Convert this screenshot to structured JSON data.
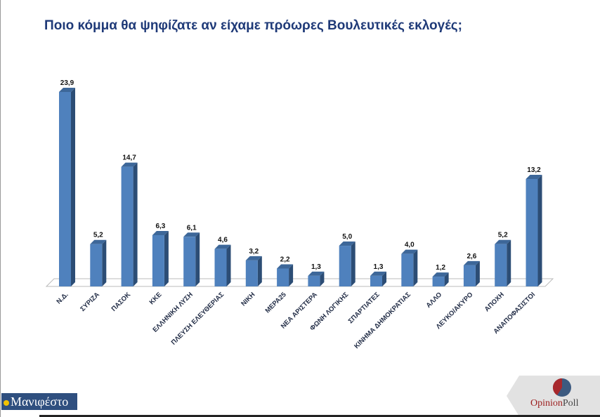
{
  "chart_data": {
    "type": "bar",
    "title": "Ποιο κόμμα θα ψηφίζατε αν είχαμε πρόωρες Βουλευτικές εκλογές;",
    "categories": [
      "Ν.Δ.",
      "ΣΥΡΙΖΑ",
      "ΠΑΣΟΚ",
      "ΚΚΕ",
      "ΕΛΛΗΝΙΚΗ ΛΥΣΗ",
      "ΠΛΕΥΣΗ ΕΛΕΥΘΕΡΙΑΣ",
      "ΝΙΚΗ",
      "ΜΕΡΑ25",
      "ΝΕΑ ΑΡΙΣΤΕΡΑ",
      "ΦΩΝΗ ΛΟΓΙΚΗΣ",
      "ΣΠΑΡΤΙΑΤΕΣ",
      "ΚΙΝΗΜΑ ΔΗΜΟΚΡΑΤΙΑΣ",
      "ΑΛΛΟ",
      "ΛΕΥΚΟ/ΑΚΥΡΟ",
      "ΑΠΟΧΗ",
      "ΑΝΑΠΟΦΑΣΙΣΤΟΙ"
    ],
    "values": [
      23.9,
      5.2,
      14.7,
      6.3,
      6.1,
      4.6,
      3.2,
      2.2,
      1.3,
      5.0,
      1.3,
      4.0,
      1.2,
      2.6,
      5.2,
      13.2
    ],
    "value_labels": [
      "23,9",
      "5,2",
      "14,7",
      "6,3",
      "6,1",
      "4,6",
      "3,2",
      "2,2",
      "1,3",
      "5,0",
      "1,3",
      "4,0",
      "1,2",
      "2,6",
      "5,2",
      "13,2"
    ],
    "xlabel": "",
    "ylabel": "",
    "ylim": [
      0,
      25
    ],
    "grid": false,
    "legend": "none",
    "colors": {
      "bar": "#4f81bd",
      "bar_side": "#2c4d75",
      "bar_top": "#3d6799"
    }
  },
  "logos": {
    "left": "Μανιφέστο",
    "right_a": "Opinion",
    "right_b": "Poll"
  }
}
